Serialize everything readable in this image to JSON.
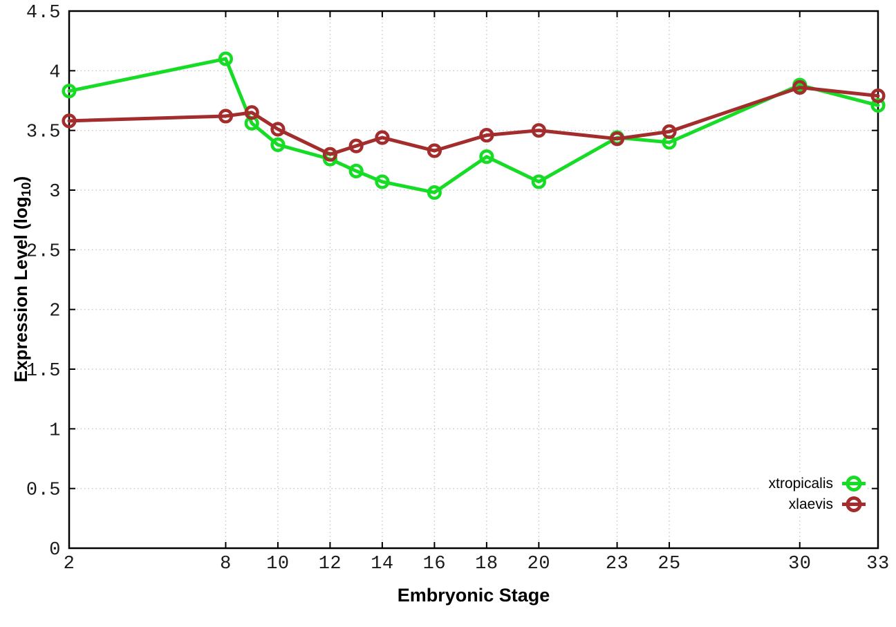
{
  "chart_data": {
    "type": "line",
    "title": "",
    "xlabel": "Embryonic Stage",
    "ylabel": "Expression Level (log10)",
    "ylabel_parts": {
      "prefix": "Expression Level (log",
      "subscript": "10",
      "suffix": ")"
    },
    "xlim": [
      2,
      33
    ],
    "ylim": [
      0,
      4.5
    ],
    "xticks": [
      2,
      8,
      10,
      12,
      14,
      16,
      18,
      20,
      23,
      25,
      30,
      33
    ],
    "yticks": [
      0,
      0.5,
      1,
      1.5,
      2,
      2.5,
      3,
      3.5,
      4,
      4.5
    ],
    "grid": true,
    "legend_position": "bottom-right",
    "x": [
      2,
      8,
      9,
      10,
      12,
      13,
      14,
      16,
      18,
      20,
      23,
      25,
      30,
      33
    ],
    "series": [
      {
        "name": "xtropicalis",
        "color": "#17dc26",
        "values": [
          3.83,
          4.1,
          3.56,
          3.38,
          3.26,
          3.16,
          3.07,
          2.98,
          3.28,
          3.07,
          3.44,
          3.4,
          3.88,
          3.71
        ]
      },
      {
        "name": "xlaevis",
        "color": "#a32c2c",
        "values": [
          3.58,
          3.62,
          3.65,
          3.51,
          3.3,
          3.37,
          3.44,
          3.33,
          3.46,
          3.5,
          3.43,
          3.49,
          3.86,
          3.79
        ]
      }
    ],
    "colors": {
      "grid": "#c6c6c6",
      "axis": "#000000",
      "tick_text": "#1a1a1a"
    }
  }
}
